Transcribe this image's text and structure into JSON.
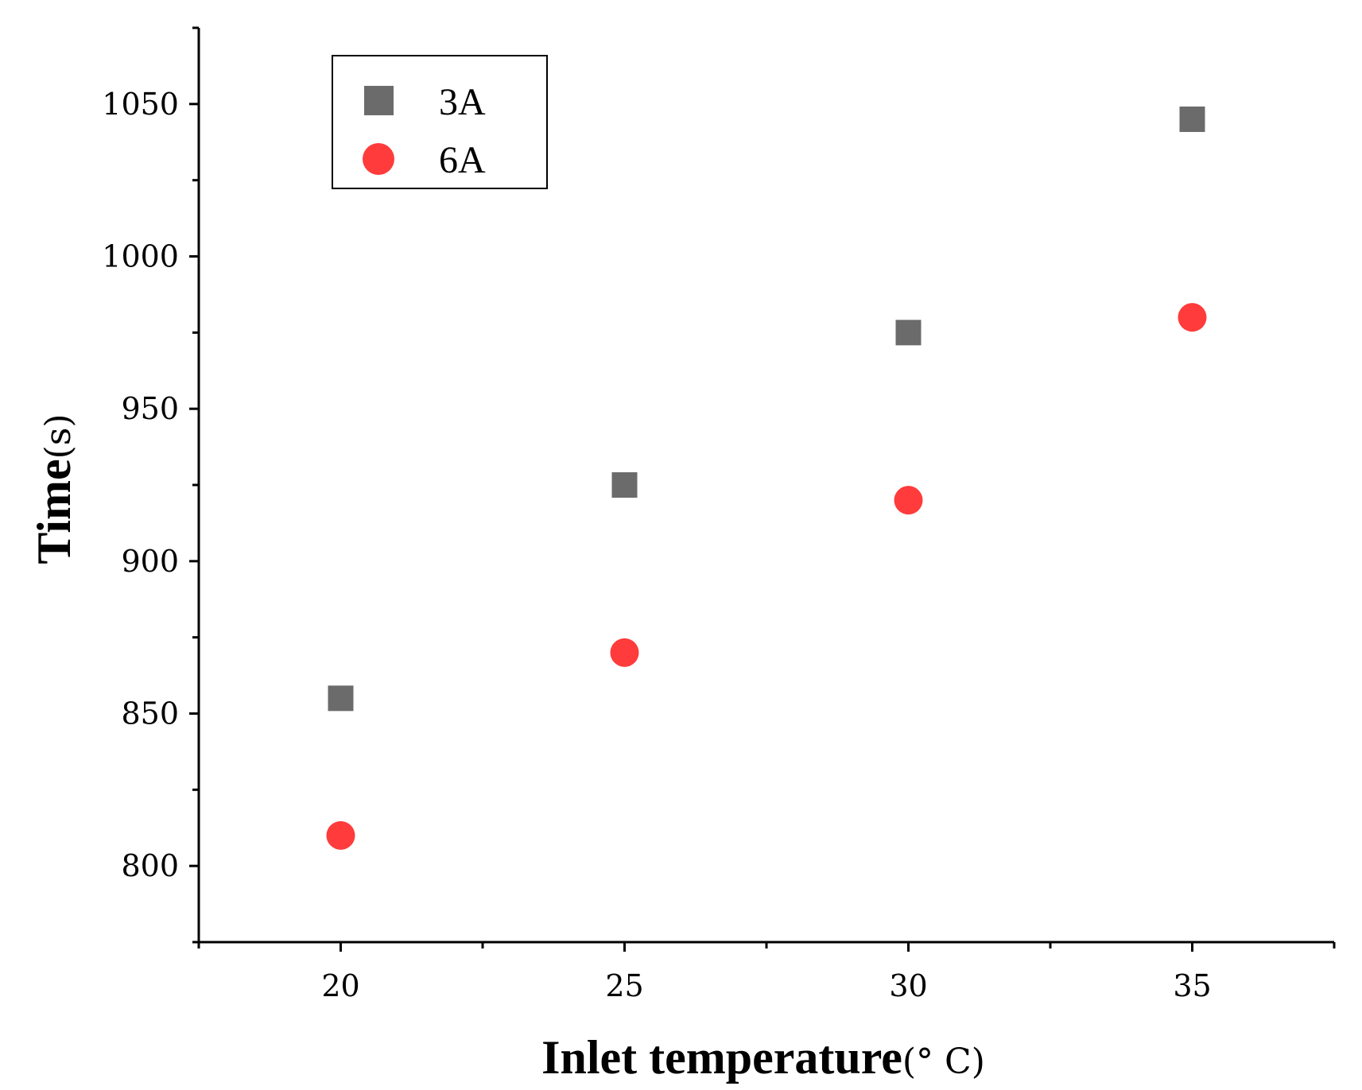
{
  "chart_data": {
    "type": "scatter",
    "xlabel": "Inlet temperature",
    "xlabel_unit": "(° C)",
    "ylabel": "Time",
    "ylabel_unit": "(s)",
    "xlim": [
      17.5,
      37.5
    ],
    "ylim": [
      775,
      1075
    ],
    "xticks": [
      20,
      25,
      30,
      35
    ],
    "yticks": [
      800,
      850,
      900,
      950,
      1000,
      1050
    ],
    "grid": false,
    "legend_position": "top-left",
    "series": [
      {
        "name": "3A",
        "marker": "square",
        "color": "#6b6b6b",
        "x": [
          20,
          25,
          30,
          35
        ],
        "y": [
          855,
          925,
          975,
          1045
        ]
      },
      {
        "name": "6A",
        "marker": "circle",
        "color": "#ff3b3b",
        "x": [
          20,
          25,
          30,
          35
        ],
        "y": [
          810,
          870,
          920,
          980
        ]
      }
    ]
  }
}
